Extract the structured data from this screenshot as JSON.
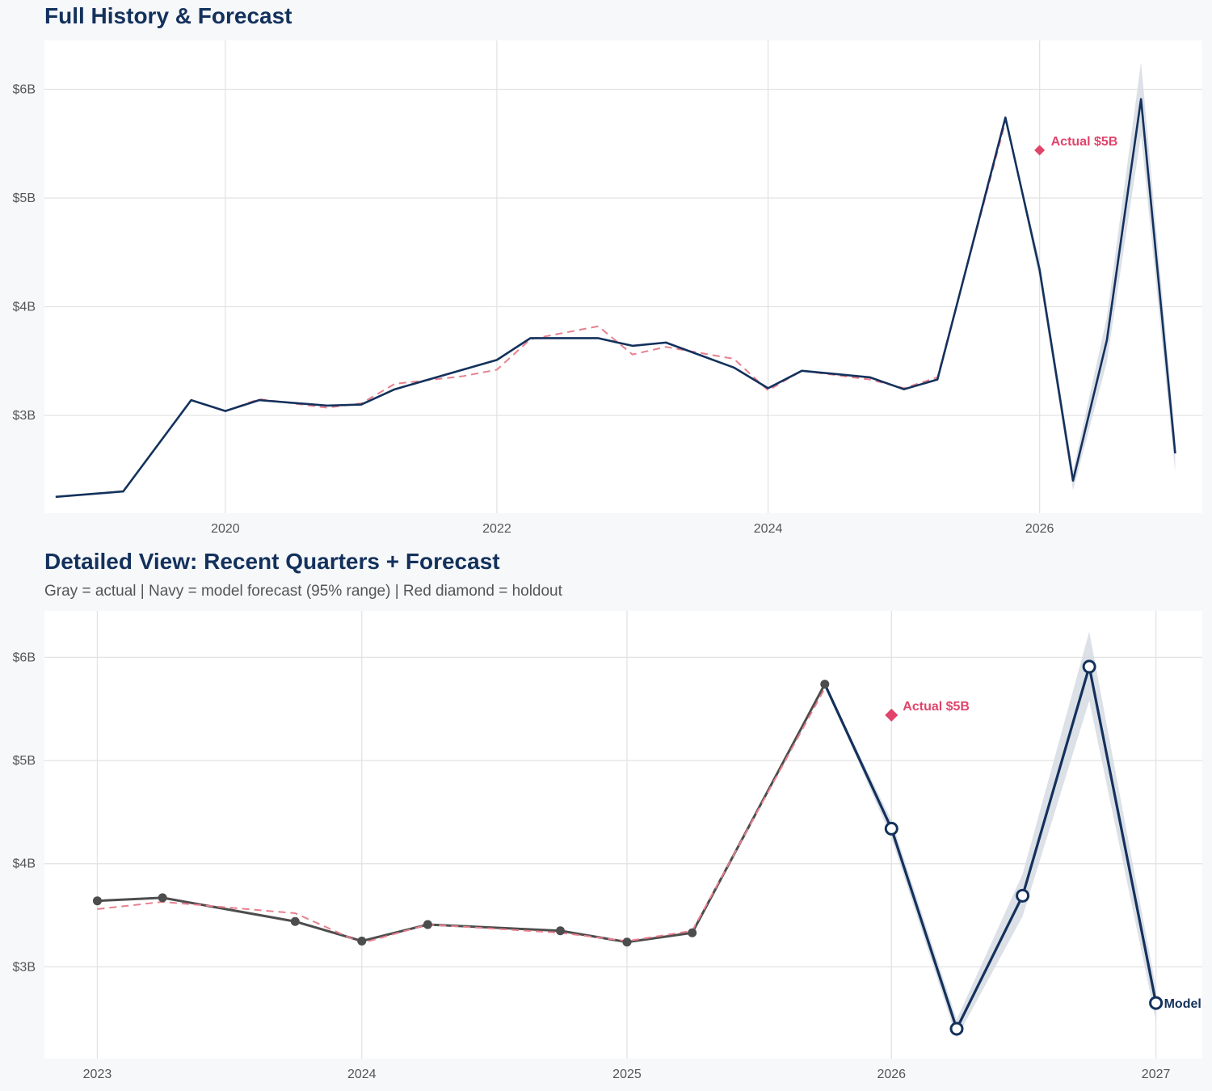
{
  "colors": {
    "background": "#f7f8fa",
    "panel": "#ffffff",
    "grid": "#e3e3e3",
    "title": "#13315c",
    "navy": "#13315c",
    "band": "#d6dbe3",
    "actual_gray": "#4d4d4d",
    "fitted_red": "#e8808f",
    "holdout_red": "#e0446a"
  },
  "chart_data": [
    {
      "type": "line",
      "title": "Full History & Forecast",
      "xlabel": "",
      "ylabel": "",
      "xlim": [
        "2018-09-01",
        "2027-03-15"
      ],
      "ylim": [
        2.1,
        6.45
      ],
      "x_ticks": [
        {
          "label": "2020",
          "value": "2020-01-01"
        },
        {
          "label": "2022",
          "value": "2022-01-01"
        },
        {
          "label": "2024",
          "value": "2024-01-01"
        },
        {
          "label": "2026",
          "value": "2026-01-01"
        }
      ],
      "y_ticks": [
        {
          "label": "$3B",
          "value": 3
        },
        {
          "label": "$4B",
          "value": 4
        },
        {
          "label": "$5B",
          "value": 5
        },
        {
          "label": "$6B",
          "value": 6
        }
      ],
      "grid": true,
      "series": [
        {
          "style": "navy-solid",
          "x": [
            "2018-10-01",
            "2019-04-01",
            "2019-10-01",
            "2020-01-01",
            "2020-04-01",
            "2020-10-01",
            "2021-01-01",
            "2021-04-01",
            "2021-10-01",
            "2022-01-01",
            "2022-04-01",
            "2022-10-01",
            "2023-01-01",
            "2023-04-01",
            "2023-10-01",
            "2024-01-01",
            "2024-04-01",
            "2024-10-01",
            "2025-01-01",
            "2025-04-01",
            "2025-10-01",
            "2026-01-01",
            "2026-04-01",
            "2026-07-01",
            "2026-10-01",
            "2027-01-01"
          ],
          "values": [
            2.25,
            2.3,
            3.14,
            3.04,
            3.14,
            3.09,
            3.1,
            3.24,
            3.42,
            3.51,
            3.71,
            3.71,
            3.64,
            3.67,
            3.44,
            3.25,
            3.41,
            3.35,
            3.24,
            3.33,
            5.74,
            4.34,
            2.4,
            3.69,
            5.91,
            2.65
          ]
        },
        {
          "style": "red-dashed",
          "x": [
            "2020-01-01",
            "2020-04-01",
            "2020-10-01",
            "2021-01-01",
            "2021-04-01",
            "2021-10-01",
            "2022-01-01",
            "2022-04-01",
            "2022-10-01",
            "2023-01-01",
            "2023-04-01",
            "2023-10-01",
            "2024-01-01",
            "2024-04-01",
            "2024-10-01",
            "2025-01-01",
            "2025-04-01",
            "2025-10-01"
          ],
          "values": [
            3.04,
            3.15,
            3.07,
            3.11,
            3.29,
            3.36,
            3.42,
            3.7,
            3.82,
            3.56,
            3.63,
            3.52,
            3.23,
            3.41,
            3.33,
            3.25,
            3.35,
            5.7
          ]
        }
      ],
      "forecast_band": {
        "x": [
          "2025-10-01",
          "2026-01-01",
          "2026-04-01",
          "2026-07-01",
          "2026-10-01",
          "2027-01-01"
        ],
        "lower": [
          5.74,
          4.25,
          2.31,
          3.49,
          5.58,
          2.48
        ],
        "upper": [
          5.74,
          4.42,
          2.49,
          3.9,
          6.25,
          2.8
        ]
      },
      "holdout": {
        "x": "2026-01-01",
        "value": 5.44,
        "label": "Actual $5B"
      }
    },
    {
      "type": "line",
      "title": "Detailed View: Recent Quarters + Forecast",
      "subtitle": "Gray = actual  |  Navy = model forecast (95% range)  |  Red diamond = holdout",
      "xlabel": "",
      "ylabel": "",
      "xlim": [
        "2022-10-20",
        "2027-03-06"
      ],
      "ylim": [
        2.11,
        6.45
      ],
      "x_ticks": [
        {
          "label": "2023",
          "value": "2023-01-01"
        },
        {
          "label": "2024",
          "value": "2024-01-01"
        },
        {
          "label": "2025",
          "value": "2025-01-01"
        },
        {
          "label": "2026",
          "value": "2026-01-01"
        },
        {
          "label": "2027",
          "value": "2027-01-01"
        }
      ],
      "y_ticks": [
        {
          "label": "$3B",
          "value": 3
        },
        {
          "label": "$4B",
          "value": 4
        },
        {
          "label": "$5B",
          "value": 5
        },
        {
          "label": "$6B",
          "value": 6
        }
      ],
      "grid": true,
      "series": [
        {
          "style": "gray-actual",
          "x": [
            "2023-01-01",
            "2023-04-01",
            "2023-10-01",
            "2024-01-01",
            "2024-04-01",
            "2024-10-01",
            "2025-01-01",
            "2025-04-01",
            "2025-10-01"
          ],
          "values": [
            3.64,
            3.67,
            3.44,
            3.25,
            3.41,
            3.35,
            3.24,
            3.33,
            5.74
          ]
        },
        {
          "style": "red-dashed",
          "x": [
            "2023-01-01",
            "2023-04-01",
            "2023-10-01",
            "2024-01-01",
            "2024-04-01",
            "2024-10-01",
            "2025-01-01",
            "2025-04-01",
            "2025-10-01"
          ],
          "values": [
            3.56,
            3.63,
            3.52,
            3.23,
            3.41,
            3.33,
            3.25,
            3.35,
            5.7
          ]
        },
        {
          "style": "navy-forecast",
          "x": [
            "2025-10-01",
            "2026-01-01",
            "2026-04-01",
            "2026-07-01",
            "2026-10-01",
            "2027-01-01"
          ],
          "values": [
            5.74,
            4.34,
            2.4,
            3.69,
            5.91,
            2.65
          ]
        }
      ],
      "forecast_band": {
        "x": [
          "2025-10-01",
          "2026-01-01",
          "2026-04-01",
          "2026-07-01",
          "2026-10-01",
          "2027-01-01"
        ],
        "lower": [
          5.74,
          4.25,
          2.31,
          3.49,
          5.58,
          2.48
        ],
        "upper": [
          5.74,
          4.42,
          2.49,
          3.9,
          6.25,
          2.8
        ]
      },
      "holdout": {
        "x": "2026-01-01",
        "value": 5.44,
        "label": "Actual $5B"
      },
      "end_label": "Model"
    }
  ]
}
